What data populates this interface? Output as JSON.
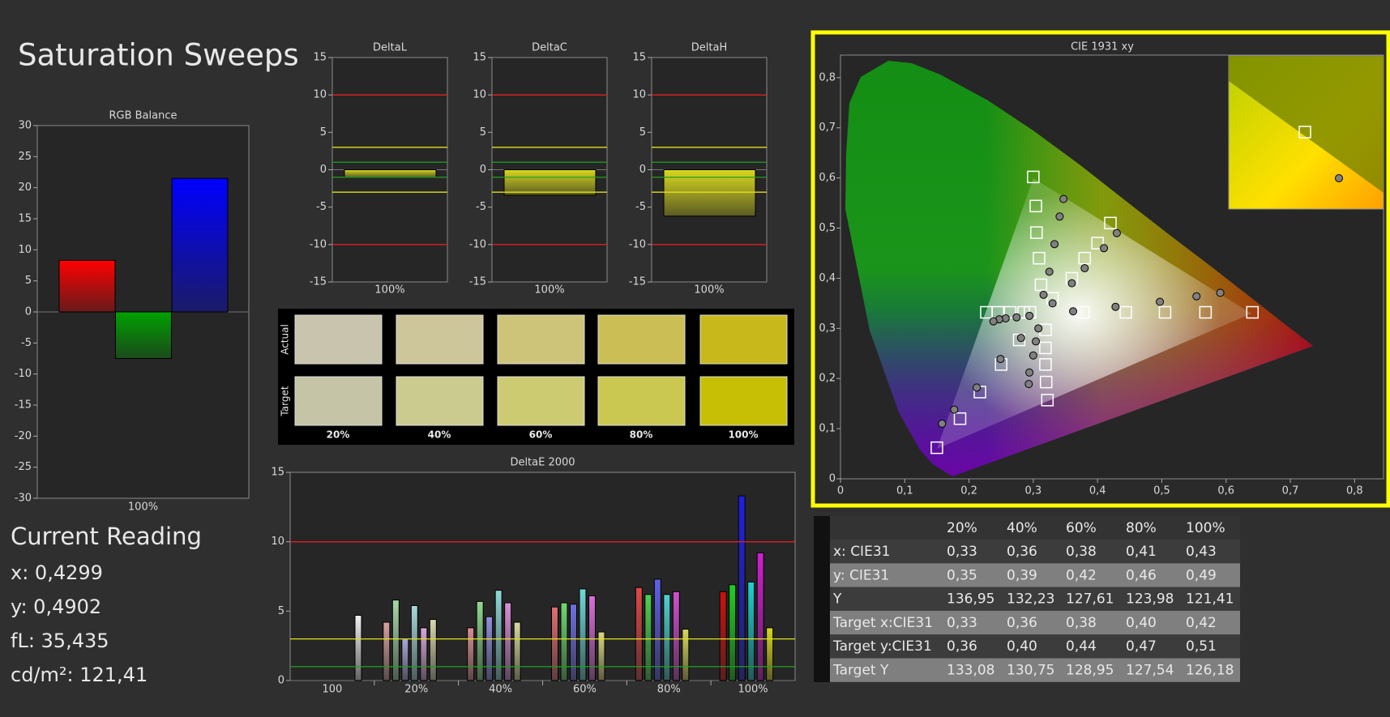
{
  "header": {
    "title": "Saturation Sweeps"
  },
  "current_reading": {
    "title": "Current Reading",
    "lines": [
      "x: 0,4299",
      "y: 0,4902",
      "fL: 35,435",
      "cd/m²: 121,41"
    ]
  },
  "swatches": {
    "row_labels": [
      "Actual",
      "Target"
    ],
    "columns": [
      "20%",
      "40%",
      "60%",
      "80%",
      "100%"
    ],
    "actual": [
      "#c8c4ae",
      "#cdc69a",
      "#cdc47a",
      "#cbbe55",
      "#c9b81c"
    ],
    "target": [
      "#c5c4a6",
      "#cbcb8f",
      "#cdcb72",
      "#cbc851",
      "#c6bf06"
    ]
  },
  "table": {
    "header": [
      "20%",
      "40%",
      "60%",
      "80%",
      "100%"
    ],
    "rows": [
      {
        "label": "x: CIE31",
        "cells": [
          "0,33",
          "0,36",
          "0,38",
          "0,41",
          "0,43"
        ]
      },
      {
        "label": "y: CIE31",
        "cells": [
          "0,35",
          "0,39",
          "0,42",
          "0,46",
          "0,49"
        ]
      },
      {
        "label": "Y",
        "cells": [
          "136,95",
          "132,23",
          "127,61",
          "123,98",
          "121,41"
        ]
      },
      {
        "label": "Target x:CIE31",
        "cells": [
          "0,33",
          "0,36",
          "0,38",
          "0,40",
          "0,42"
        ]
      },
      {
        "label": "Target y:CIE31",
        "cells": [
          "0,36",
          "0,40",
          "0,44",
          "0,47",
          "0,51"
        ]
      },
      {
        "label": "Target Y",
        "cells": [
          "133,08",
          "130,75",
          "128,95",
          "127,54",
          "126,18"
        ]
      }
    ]
  },
  "chart_data": [
    {
      "type": "bar",
      "title": "RGB Balance",
      "categories": [
        "100%"
      ],
      "series": [
        {
          "color": "#ff0000",
          "values": [
            8.3
          ]
        },
        {
          "color": "#00a000",
          "values": [
            -7.5
          ]
        },
        {
          "color": "#0000ff",
          "values": [
            21.5
          ]
        }
      ],
      "ylim": [
        -30,
        30
      ],
      "yticks": [
        -30,
        -25,
        -20,
        -15,
        -10,
        -5,
        0,
        5,
        10,
        15,
        20,
        25,
        30
      ]
    },
    {
      "type": "bar",
      "title": "DeltaL",
      "categories": [
        "100%"
      ],
      "values": [
        -1.0
      ],
      "color": "#d8d820",
      "ylim": [
        -15,
        15
      ],
      "yticks": [
        -15,
        -10,
        -5,
        0,
        5,
        10,
        15
      ],
      "ref_lines": [
        {
          "value": 10,
          "color": "#e02020"
        },
        {
          "value": 3,
          "color": "#e0e020"
        },
        {
          "value": 1,
          "color": "#20a020"
        },
        {
          "value": -1,
          "color": "#20a020"
        },
        {
          "value": -3,
          "color": "#e0e020"
        },
        {
          "value": -10,
          "color": "#e02020"
        }
      ]
    },
    {
      "type": "bar",
      "title": "DeltaC",
      "categories": [
        "100%"
      ],
      "values": [
        -3.4
      ],
      "color": "#d8d820",
      "ylim": [
        -15,
        15
      ],
      "yticks": [
        -15,
        -10,
        -5,
        0,
        5,
        10,
        15
      ],
      "ref_lines": [
        {
          "value": 10,
          "color": "#e02020"
        },
        {
          "value": 3,
          "color": "#e0e020"
        },
        {
          "value": 1,
          "color": "#20a020"
        },
        {
          "value": -1,
          "color": "#20a020"
        },
        {
          "value": -3,
          "color": "#e0e020"
        },
        {
          "value": -10,
          "color": "#e02020"
        }
      ]
    },
    {
      "type": "bar",
      "title": "DeltaH",
      "categories": [
        "100%"
      ],
      "values": [
        -6.2
      ],
      "color": "#d8d820",
      "ylim": [
        -15,
        15
      ],
      "yticks": [
        -15,
        -10,
        -5,
        0,
        5,
        10,
        15
      ],
      "ref_lines": [
        {
          "value": 10,
          "color": "#e02020"
        },
        {
          "value": 3,
          "color": "#e0e020"
        },
        {
          "value": 1,
          "color": "#20a020"
        },
        {
          "value": -1,
          "color": "#20a020"
        },
        {
          "value": -3,
          "color": "#e0e020"
        },
        {
          "value": -10,
          "color": "#e02020"
        }
      ]
    },
    {
      "type": "bar",
      "title": "DeltaE 2000",
      "categories": [
        "100",
        "20%",
        "40%",
        "60%",
        "80%",
        "100%"
      ],
      "series": [
        {
          "colors": [
            null,
            "#d8a0a0",
            "#d89090",
            "#e07070",
            "#e04848",
            "#d01010"
          ],
          "values": [
            null,
            4.2,
            3.8,
            5.3,
            6.7,
            6.4
          ]
        },
        {
          "colors": [
            null,
            "#a8d8a8",
            "#90d890",
            "#70d870",
            "#50d050",
            "#20d020"
          ],
          "values": [
            null,
            5.8,
            5.7,
            5.6,
            6.2,
            6.9
          ]
        },
        {
          "colors": [
            null,
            "#a8a8d8",
            "#9090e0",
            "#7070e0",
            "#6060e8",
            "#2020e0"
          ],
          "values": [
            null,
            3.0,
            4.6,
            5.5,
            7.3,
            13.3
          ]
        },
        {
          "colors": [
            null,
            "#a8d8d8",
            "#90d8d8",
            "#70d8d8",
            "#50d0d0",
            "#20d0d0"
          ],
          "values": [
            null,
            5.4,
            6.5,
            6.6,
            6.2,
            7.1
          ]
        },
        {
          "colors": [
            null,
            "#d8a8d8",
            "#d890d8",
            "#d870d8",
            "#d050d0",
            "#d020d0"
          ],
          "values": [
            null,
            3.8,
            5.6,
            6.1,
            6.4,
            9.2
          ]
        },
        {
          "colors": [
            null,
            "#d8d8b0",
            "#d8d8a0",
            "#d8d880",
            "#d8d860",
            "#d8d820"
          ],
          "values": [
            null,
            4.4,
            4.2,
            3.5,
            3.7,
            3.8
          ]
        },
        {
          "colors": [
            "#f0f0f0",
            null,
            null,
            null,
            null,
            null
          ],
          "values": [
            4.7,
            null,
            null,
            null,
            null,
            null
          ]
        }
      ],
      "ylim": [
        0,
        15
      ],
      "yticks": [
        0,
        5,
        10,
        15
      ],
      "ref_lines": [
        {
          "value": 10,
          "color": "#e02020"
        },
        {
          "value": 3,
          "color": "#e0e020"
        },
        {
          "value": 1,
          "color": "#20a020"
        }
      ]
    },
    {
      "type": "scatter",
      "title": "CIE 1931 xy",
      "xlim": [
        0,
        0.845
      ],
      "ylim": [
        0,
        0.845
      ],
      "xticks": [
        0,
        {
          "value": 0.1,
          "label": "0,1"
        },
        {
          "value": 0.2,
          "label": "0,2"
        },
        {
          "value": 0.3,
          "label": "0,3"
        },
        {
          "value": 0.4,
          "label": "0,4"
        },
        {
          "value": 0.5,
          "label": "0,5"
        },
        {
          "value": 0.6,
          "label": "0,6"
        },
        {
          "value": 0.7,
          "label": "0,7"
        },
        {
          "value": 0.8,
          "label": "0,8"
        }
      ],
      "yticks": [
        0,
        {
          "value": 0.1,
          "label": "0,1"
        },
        {
          "value": 0.2,
          "label": "0,2"
        },
        {
          "value": 0.3,
          "label": "0,3"
        },
        {
          "value": 0.4,
          "label": "0,4"
        },
        {
          "value": 0.5,
          "label": "0,5"
        },
        {
          "value": 0.6,
          "label": "0,6"
        },
        {
          "value": 0.7,
          "label": "0,7"
        },
        {
          "value": 0.8,
          "label": "0,8"
        }
      ],
      "series": [
        {
          "marker": "square",
          "color": "#ffffff",
          "x": [
            0.378,
            0.444,
            0.505,
            0.568,
            0.641
          ],
          "values": [
            0.332,
            0.332,
            0.332,
            0.332,
            0.332
          ]
        },
        {
          "marker": "square",
          "color": "#ffffff",
          "x": [
            0.312,
            0.309,
            0.305,
            0.304,
            0.3
          ],
          "values": [
            0.387,
            0.44,
            0.491,
            0.544,
            0.602
          ]
        },
        {
          "marker": "square",
          "color": "#ffffff",
          "x": [
            0.278,
            0.25,
            0.217,
            0.186,
            0.15
          ],
          "values": [
            0.277,
            0.228,
            0.173,
            0.12,
            0.062
          ]
        },
        {
          "marker": "square",
          "color": "#ffffff",
          "x": [
            0.295,
            0.285,
            0.264,
            0.245,
            0.227
          ],
          "values": [
            0.332,
            0.332,
            0.332,
            0.332,
            0.332
          ]
        },
        {
          "marker": "square",
          "color": "#ffffff",
          "x": [
            0.319,
            0.319,
            0.319,
            0.32,
            0.322
          ],
          "values": [
            0.297,
            0.261,
            0.228,
            0.193,
            0.157
          ]
        },
        {
          "marker": "square",
          "color": "#ffffff",
          "x": [
            0.33,
            0.36,
            0.38,
            0.4,
            0.42
          ],
          "values": [
            0.36,
            0.4,
            0.44,
            0.47,
            0.51
          ]
        },
        {
          "marker": "circle",
          "color": "#808080",
          "x": [
            0.362,
            0.428,
            0.497,
            0.554,
            0.591
          ],
          "values": [
            0.334,
            0.343,
            0.353,
            0.364,
            0.371
          ]
        },
        {
          "marker": "circle",
          "color": "#808080",
          "x": [
            0.316,
            0.325,
            0.333,
            0.341,
            0.347
          ],
          "values": [
            0.367,
            0.413,
            0.468,
            0.523,
            0.558
          ]
        },
        {
          "marker": "circle",
          "color": "#808080",
          "x": [
            0.281,
            0.249,
            0.212,
            0.177,
            0.158
          ],
          "values": [
            0.281,
            0.239,
            0.182,
            0.138,
            0.11
          ]
        },
        {
          "marker": "circle",
          "color": "#808080",
          "x": [
            0.294,
            0.274,
            0.257,
            0.247,
            0.238
          ],
          "values": [
            0.325,
            0.322,
            0.32,
            0.318,
            0.314
          ]
        },
        {
          "marker": "circle",
          "color": "#808080",
          "x": [
            0.308,
            0.304,
            0.3,
            0.294,
            0.293
          ],
          "values": [
            0.3,
            0.274,
            0.246,
            0.212,
            0.189
          ]
        },
        {
          "marker": "circle",
          "color": "#808080",
          "x": [
            0.33,
            0.36,
            0.38,
            0.41,
            0.43
          ],
          "values": [
            0.35,
            0.39,
            0.42,
            0.46,
            0.49
          ]
        }
      ]
    }
  ]
}
